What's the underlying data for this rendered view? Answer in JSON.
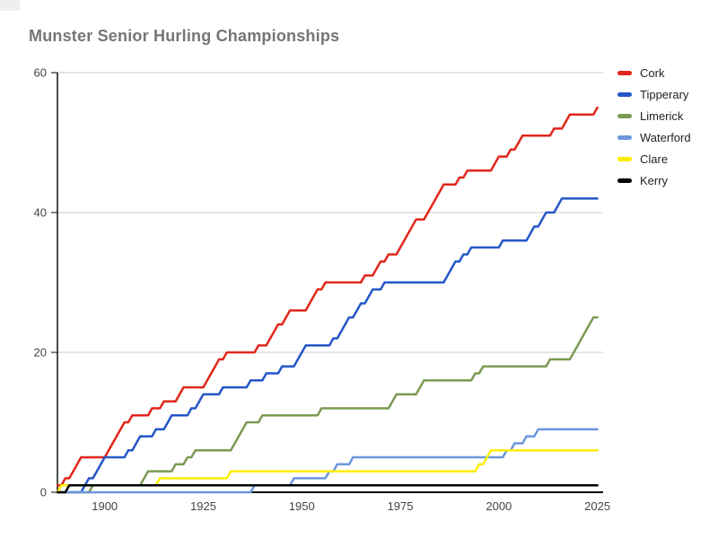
{
  "title": "Munster Senior Hurling Championships",
  "colors": {
    "background": "#ffffff",
    "title_text": "#757575",
    "axis": "#000000",
    "gridline": "#cccccc",
    "tick_label": "#444444",
    "legend_text": "#222222",
    "corner_artifact": "#efefef"
  },
  "chart_data": {
    "type": "line",
    "title": "Munster Senior Hurling Championships",
    "xlabel": "",
    "ylabel": "",
    "x_range": [
      1888,
      2026
    ],
    "x_end_year": 2025,
    "x_ticks": [
      1900,
      1925,
      1950,
      1975,
      2000,
      2025
    ],
    "y_range": [
      0,
      60
    ],
    "y_ticks": [
      0,
      20,
      40,
      60
    ],
    "grid": true,
    "legend_position": "right",
    "value_semantics": "cumulative Munster senior hurling titles per county; line steps +1 at each win year, flat otherwise, plotted yearly from 1888 to 2025",
    "series": [
      {
        "name": "Cork",
        "color": "#e2261b",
        "final_total": 55,
        "win_years": [
          1888,
          1890,
          1892,
          1893,
          1894,
          1901,
          1902,
          1903,
          1904,
          1905,
          1907,
          1912,
          1915,
          1919,
          1920,
          1926,
          1927,
          1928,
          1929,
          1931,
          1939,
          1942,
          1943,
          1944,
          1946,
          1947,
          1952,
          1953,
          1954,
          1956,
          1966,
          1969,
          1970,
          1972,
          1975,
          1976,
          1977,
          1978,
          1979,
          1982,
          1983,
          1984,
          1985,
          1986,
          1990,
          1992,
          1999,
          2000,
          2003,
          2005,
          2006,
          2014,
          2017,
          2018,
          2025
        ]
      },
      {
        "name": "Tipperary",
        "color": "#2456c7",
        "final_total": 42,
        "win_years": [
          1895,
          1896,
          1898,
          1899,
          1900,
          1906,
          1908,
          1909,
          1913,
          1916,
          1917,
          1922,
          1924,
          1925,
          1930,
          1937,
          1941,
          1945,
          1949,
          1950,
          1951,
          1958,
          1960,
          1961,
          1962,
          1964,
          1965,
          1967,
          1968,
          1971,
          1987,
          1988,
          1989,
          1991,
          1993,
          2001,
          2008,
          2009,
          2011,
          2012,
          2015,
          2016
        ]
      },
      {
        "name": "Limerick",
        "color": "#7b9a52",
        "final_total": 25,
        "win_years": [
          1897,
          1910,
          1911,
          1918,
          1921,
          1923,
          1933,
          1934,
          1935,
          1936,
          1940,
          1955,
          1973,
          1974,
          1980,
          1981,
          1994,
          1996,
          2013,
          2019,
          2020,
          2021,
          2022,
          2023,
          2024
        ]
      },
      {
        "name": "Waterford",
        "color": "#6b97de",
        "final_total": 9,
        "win_years": [
          1938,
          1948,
          1957,
          1959,
          1963,
          2002,
          2004,
          2007,
          2010
        ]
      },
      {
        "name": "Clare",
        "color": "#fdee00",
        "final_total": 6,
        "win_years": [
          1889,
          1914,
          1932,
          1995,
          1997,
          1998
        ]
      },
      {
        "name": "Kerry",
        "color": "#000000",
        "final_total": 1,
        "win_years": [
          1891
        ]
      }
    ]
  }
}
